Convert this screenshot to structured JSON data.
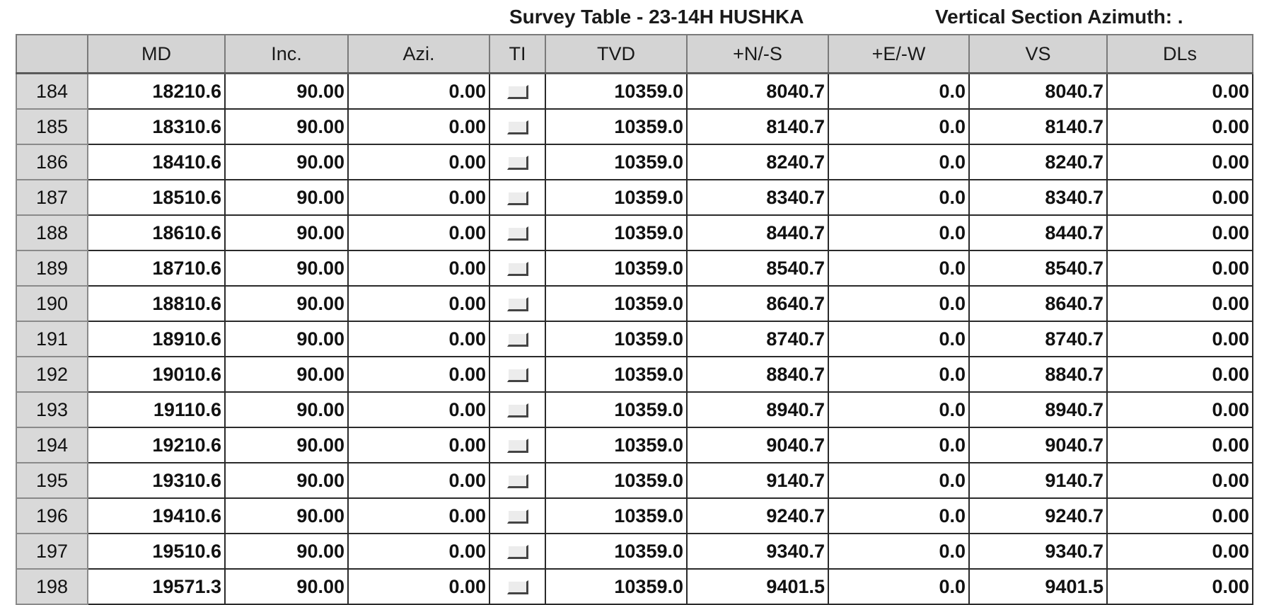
{
  "header": {
    "title": "Survey Table - 23-14H HUSHKA",
    "azimuth_label": "Vertical Section Azimuth: ."
  },
  "table": {
    "columns": [
      "",
      "MD",
      "Inc.",
      "Azi.",
      "TI",
      "TVD",
      "+N/-S",
      "+E/-W",
      "VS",
      "DLs"
    ],
    "rows": [
      {
        "num": "184",
        "md": "18210.6",
        "inc": "90.00",
        "azi": "0.00",
        "tvd": "10359.0",
        "ns": "8040.7",
        "ew": "0.0",
        "vs": "8040.7",
        "dls": "0.00"
      },
      {
        "num": "185",
        "md": "18310.6",
        "inc": "90.00",
        "azi": "0.00",
        "tvd": "10359.0",
        "ns": "8140.7",
        "ew": "0.0",
        "vs": "8140.7",
        "dls": "0.00"
      },
      {
        "num": "186",
        "md": "18410.6",
        "inc": "90.00",
        "azi": "0.00",
        "tvd": "10359.0",
        "ns": "8240.7",
        "ew": "0.0",
        "vs": "8240.7",
        "dls": "0.00"
      },
      {
        "num": "187",
        "md": "18510.6",
        "inc": "90.00",
        "azi": "0.00",
        "tvd": "10359.0",
        "ns": "8340.7",
        "ew": "0.0",
        "vs": "8340.7",
        "dls": "0.00"
      },
      {
        "num": "188",
        "md": "18610.6",
        "inc": "90.00",
        "azi": "0.00",
        "tvd": "10359.0",
        "ns": "8440.7",
        "ew": "0.0",
        "vs": "8440.7",
        "dls": "0.00"
      },
      {
        "num": "189",
        "md": "18710.6",
        "inc": "90.00",
        "azi": "0.00",
        "tvd": "10359.0",
        "ns": "8540.7",
        "ew": "0.0",
        "vs": "8540.7",
        "dls": "0.00"
      },
      {
        "num": "190",
        "md": "18810.6",
        "inc": "90.00",
        "azi": "0.00",
        "tvd": "10359.0",
        "ns": "8640.7",
        "ew": "0.0",
        "vs": "8640.7",
        "dls": "0.00"
      },
      {
        "num": "191",
        "md": "18910.6",
        "inc": "90.00",
        "azi": "0.00",
        "tvd": "10359.0",
        "ns": "8740.7",
        "ew": "0.0",
        "vs": "8740.7",
        "dls": "0.00"
      },
      {
        "num": "192",
        "md": "19010.6",
        "inc": "90.00",
        "azi": "0.00",
        "tvd": "10359.0",
        "ns": "8840.7",
        "ew": "0.0",
        "vs": "8840.7",
        "dls": "0.00"
      },
      {
        "num": "193",
        "md": "19110.6",
        "inc": "90.00",
        "azi": "0.00",
        "tvd": "10359.0",
        "ns": "8940.7",
        "ew": "0.0",
        "vs": "8940.7",
        "dls": "0.00"
      },
      {
        "num": "194",
        "md": "19210.6",
        "inc": "90.00",
        "azi": "0.00",
        "tvd": "10359.0",
        "ns": "9040.7",
        "ew": "0.0",
        "vs": "9040.7",
        "dls": "0.00"
      },
      {
        "num": "195",
        "md": "19310.6",
        "inc": "90.00",
        "azi": "0.00",
        "tvd": "10359.0",
        "ns": "9140.7",
        "ew": "0.0",
        "vs": "9140.7",
        "dls": "0.00"
      },
      {
        "num": "196",
        "md": "19410.6",
        "inc": "90.00",
        "azi": "0.00",
        "tvd": "10359.0",
        "ns": "9240.7",
        "ew": "0.0",
        "vs": "9240.7",
        "dls": "0.00"
      },
      {
        "num": "197",
        "md": "19510.6",
        "inc": "90.00",
        "azi": "0.00",
        "tvd": "10359.0",
        "ns": "9340.7",
        "ew": "0.0",
        "vs": "9340.7",
        "dls": "0.00"
      },
      {
        "num": "198",
        "md": "19571.3",
        "inc": "90.00",
        "azi": "0.00",
        "tvd": "10359.0",
        "ns": "9401.5",
        "ew": "0.0",
        "vs": "9401.5",
        "dls": "0.00"
      }
    ]
  },
  "icons": {
    "ti_checkbox": "ti-checkbox-icon"
  },
  "colors": {
    "header_bg": "#d4d4d4",
    "rownum_bg": "#d9d9d9",
    "cell_bg": "#ffffff",
    "grid_line": "#2a2a2a"
  }
}
